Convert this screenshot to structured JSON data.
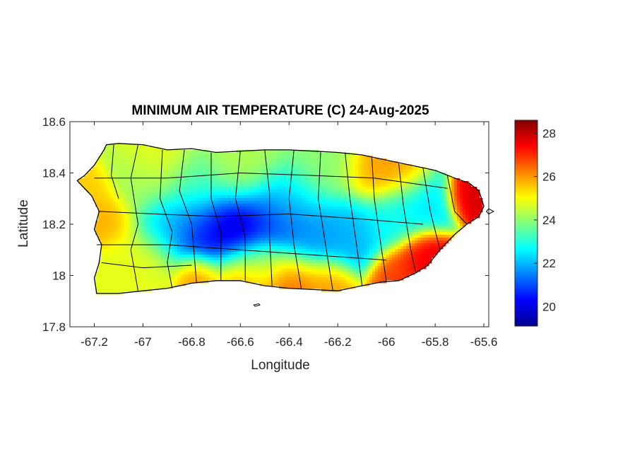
{
  "chart_data": {
    "type": "heatmap",
    "title": "MINIMUM AIR TEMPERATURE (C) 24-Aug-2025",
    "xlabel": "Longitude",
    "ylabel": "Latitude",
    "xlim": [
      -67.3,
      -65.58
    ],
    "ylim": [
      17.8,
      18.6
    ],
    "xticks": [
      -67.2,
      -67,
      -66.8,
      -66.6,
      -66.4,
      -66.2,
      -66,
      -65.8,
      -65.6
    ],
    "xtick_labels": [
      "-67.2",
      "-67",
      "-66.8",
      "-66.6",
      "-66.4",
      "-66.2",
      "-66",
      "-65.8",
      "-65.6"
    ],
    "yticks": [
      17.8,
      18,
      18.2,
      18.4,
      18.6
    ],
    "ytick_labels": [
      "17.8",
      "18",
      "18.2",
      "18.4",
      "18.6"
    ],
    "colorbar": {
      "colormap": "jet",
      "range": [
        19.1,
        28.6
      ],
      "ticks": [
        20,
        22,
        24,
        26,
        28
      ],
      "tick_labels": [
        "20",
        "22",
        "24",
        "26",
        "28"
      ]
    },
    "outline": [
      [
        -67.27,
        18.37
      ],
      [
        -67.24,
        18.39
      ],
      [
        -67.2,
        18.43
      ],
      [
        -67.16,
        18.49
      ],
      [
        -67.15,
        18.51
      ],
      [
        -67.1,
        18.515
      ],
      [
        -67.0,
        18.51
      ],
      [
        -66.9,
        18.49
      ],
      [
        -66.8,
        18.495
      ],
      [
        -66.7,
        18.48
      ],
      [
        -66.6,
        18.485
      ],
      [
        -66.5,
        18.49
      ],
      [
        -66.4,
        18.49
      ],
      [
        -66.3,
        18.485
      ],
      [
        -66.2,
        18.48
      ],
      [
        -66.1,
        18.47
      ],
      [
        -66.0,
        18.45
      ],
      [
        -65.9,
        18.43
      ],
      [
        -65.8,
        18.41
      ],
      [
        -65.72,
        18.38
      ],
      [
        -65.66,
        18.36
      ],
      [
        -65.62,
        18.33
      ],
      [
        -65.6,
        18.27
      ],
      [
        -65.62,
        18.23
      ],
      [
        -65.67,
        18.2
      ],
      [
        -65.72,
        18.16
      ],
      [
        -65.78,
        18.1
      ],
      [
        -65.83,
        18.04
      ],
      [
        -65.88,
        18.01
      ],
      [
        -65.95,
        17.98
      ],
      [
        -66.02,
        17.975
      ],
      [
        -66.1,
        17.96
      ],
      [
        -66.2,
        17.94
      ],
      [
        -66.3,
        17.945
      ],
      [
        -66.4,
        17.95
      ],
      [
        -66.5,
        17.96
      ],
      [
        -66.6,
        17.98
      ],
      [
        -66.7,
        17.98
      ],
      [
        -66.8,
        17.97
      ],
      [
        -66.9,
        17.95
      ],
      [
        -67.0,
        17.94
      ],
      [
        -67.1,
        17.93
      ],
      [
        -67.19,
        17.93
      ],
      [
        -67.2,
        17.99
      ],
      [
        -67.18,
        18.05
      ],
      [
        -67.17,
        18.12
      ],
      [
        -67.2,
        18.18
      ],
      [
        -67.18,
        18.25
      ],
      [
        -67.21,
        18.31
      ],
      [
        -67.27,
        18.37
      ]
    ],
    "anchors": [
      {
        "lon": -66.62,
        "lat": 18.17,
        "value": 19.6,
        "spread": 0.09
      },
      {
        "lon": -66.78,
        "lat": 18.17,
        "value": 20.6,
        "spread": 0.08
      },
      {
        "lon": -66.9,
        "lat": 18.2,
        "value": 22.0,
        "spread": 0.07
      },
      {
        "lon": -66.45,
        "lat": 18.2,
        "value": 20.6,
        "spread": 0.08
      },
      {
        "lon": -66.3,
        "lat": 18.15,
        "value": 21.6,
        "spread": 0.08
      },
      {
        "lon": -66.15,
        "lat": 18.17,
        "value": 22.0,
        "spread": 0.08
      },
      {
        "lon": -66.4,
        "lat": 18.28,
        "value": 22.6,
        "spread": 0.08
      },
      {
        "lon": -65.85,
        "lat": 18.3,
        "value": 22.4,
        "spread": 0.07
      },
      {
        "lon": -65.98,
        "lat": 18.22,
        "value": 22.8,
        "spread": 0.07
      },
      {
        "lon": -66.8,
        "lat": 18.33,
        "value": 23.3,
        "spread": 0.08
      },
      {
        "lon": -67.0,
        "lat": 18.36,
        "value": 24.0,
        "spread": 0.08
      },
      {
        "lon": -66.25,
        "lat": 18.42,
        "value": 24.0,
        "spread": 0.09
      },
      {
        "lon": -66.6,
        "lat": 18.42,
        "value": 24.3,
        "spread": 0.09
      },
      {
        "lon": -66.95,
        "lat": 18.44,
        "value": 25.0,
        "spread": 0.08
      },
      {
        "lon": -66.05,
        "lat": 18.4,
        "value": 26.0,
        "spread": 0.07
      },
      {
        "lon": -65.92,
        "lat": 18.41,
        "value": 26.0,
        "spread": 0.06
      },
      {
        "lon": -65.66,
        "lat": 18.32,
        "value": 27.8,
        "spread": 0.05
      },
      {
        "lon": -65.85,
        "lat": 18.06,
        "value": 27.6,
        "spread": 0.06
      },
      {
        "lon": -65.95,
        "lat": 18.0,
        "value": 26.8,
        "spread": 0.06
      },
      {
        "lon": -66.4,
        "lat": 17.99,
        "value": 26.5,
        "spread": 0.07
      },
      {
        "lon": -66.6,
        "lat": 18.0,
        "value": 26.2,
        "spread": 0.07
      },
      {
        "lon": -66.25,
        "lat": 17.97,
        "value": 26.0,
        "spread": 0.06
      },
      {
        "lon": -66.78,
        "lat": 18.0,
        "value": 26.3,
        "spread": 0.05
      },
      {
        "lon": -67.0,
        "lat": 18.05,
        "value": 24.8,
        "spread": 0.09
      },
      {
        "lon": -67.1,
        "lat": 18.0,
        "value": 24.8,
        "spread": 0.06
      },
      {
        "lon": -67.15,
        "lat": 18.22,
        "value": 25.8,
        "spread": 0.06
      },
      {
        "lon": -67.22,
        "lat": 18.33,
        "value": 25.5,
        "spread": 0.05
      },
      {
        "lon": -66.5,
        "lat": 18.05,
        "value": 24.5,
        "spread": 0.06
      }
    ],
    "municipal_lines": [
      [
        [
          -67.12,
          18.51
        ],
        [
          -67.13,
          18.39
        ],
        [
          -67.1,
          18.3
        ]
      ],
      [
        [
          -67.02,
          18.51
        ],
        [
          -67.05,
          18.38
        ],
        [
          -67.02,
          18.2
        ],
        [
          -67.05,
          18.1
        ],
        [
          -67.02,
          17.94
        ]
      ],
      [
        [
          -66.92,
          18.49
        ],
        [
          -66.93,
          18.3
        ],
        [
          -66.88,
          18.17
        ],
        [
          -66.9,
          18.05
        ],
        [
          -66.88,
          17.95
        ]
      ],
      [
        [
          -66.83,
          18.49
        ],
        [
          -66.85,
          18.33
        ],
        [
          -66.8,
          18.2
        ],
        [
          -66.78,
          17.97
        ]
      ],
      [
        [
          -66.72,
          18.48
        ],
        [
          -66.72,
          18.3
        ],
        [
          -66.68,
          18.17
        ],
        [
          -66.68,
          17.98
        ]
      ],
      [
        [
          -66.6,
          18.485
        ],
        [
          -66.62,
          18.3
        ],
        [
          -66.58,
          18.15
        ],
        [
          -66.58,
          17.98
        ]
      ],
      [
        [
          -66.5,
          18.49
        ],
        [
          -66.48,
          18.32
        ],
        [
          -66.48,
          18.15
        ],
        [
          -66.47,
          17.96
        ]
      ],
      [
        [
          -66.38,
          18.49
        ],
        [
          -66.4,
          18.3
        ],
        [
          -66.38,
          18.12
        ],
        [
          -66.35,
          17.95
        ]
      ],
      [
        [
          -66.27,
          18.485
        ],
        [
          -66.28,
          18.3
        ],
        [
          -66.25,
          18.12
        ],
        [
          -66.22,
          17.94
        ]
      ],
      [
        [
          -66.17,
          18.48
        ],
        [
          -66.15,
          18.3
        ],
        [
          -66.12,
          18.1
        ],
        [
          -66.1,
          17.96
        ]
      ],
      [
        [
          -66.06,
          18.46
        ],
        [
          -66.05,
          18.3
        ],
        [
          -66.02,
          18.1
        ],
        [
          -66.0,
          17.975
        ]
      ],
      [
        [
          -65.95,
          18.44
        ],
        [
          -65.93,
          18.27
        ],
        [
          -65.9,
          18.1
        ],
        [
          -65.88,
          18.01
        ]
      ],
      [
        [
          -65.85,
          18.42
        ],
        [
          -65.82,
          18.25
        ],
        [
          -65.78,
          18.1
        ]
      ],
      [
        [
          -65.75,
          18.39
        ],
        [
          -65.72,
          18.25
        ],
        [
          -65.67,
          18.2
        ]
      ],
      [
        [
          -67.18,
          18.25
        ],
        [
          -66.95,
          18.24
        ],
        [
          -66.7,
          18.23
        ],
        [
          -66.4,
          18.24
        ],
        [
          -66.1,
          18.22
        ],
        [
          -65.85,
          18.2
        ]
      ],
      [
        [
          -67.19,
          18.12
        ],
        [
          -66.9,
          18.12
        ],
        [
          -66.6,
          18.1
        ],
        [
          -66.3,
          18.08
        ],
        [
          -66.0,
          18.06
        ]
      ],
      [
        [
          -67.2,
          18.38
        ],
        [
          -66.9,
          18.38
        ],
        [
          -66.6,
          18.4
        ],
        [
          -66.3,
          18.39
        ],
        [
          -66.05,
          18.38
        ],
        [
          -65.75,
          18.34
        ]
      ],
      [
        [
          -67.17,
          18.05
        ],
        [
          -67.0,
          18.03
        ],
        [
          -66.8,
          18.04
        ]
      ]
    ],
    "islets": [
      [
        [
          -66.54,
          17.88
        ],
        [
          -66.52,
          17.885
        ],
        [
          -66.525,
          17.89
        ],
        [
          -66.545,
          17.885
        ],
        [
          -66.54,
          17.88
        ]
      ],
      [
        [
          -65.58,
          18.24
        ],
        [
          -65.56,
          18.25
        ],
        [
          -65.58,
          18.26
        ],
        [
          -65.59,
          18.25
        ],
        [
          -65.58,
          18.24
        ]
      ]
    ]
  }
}
